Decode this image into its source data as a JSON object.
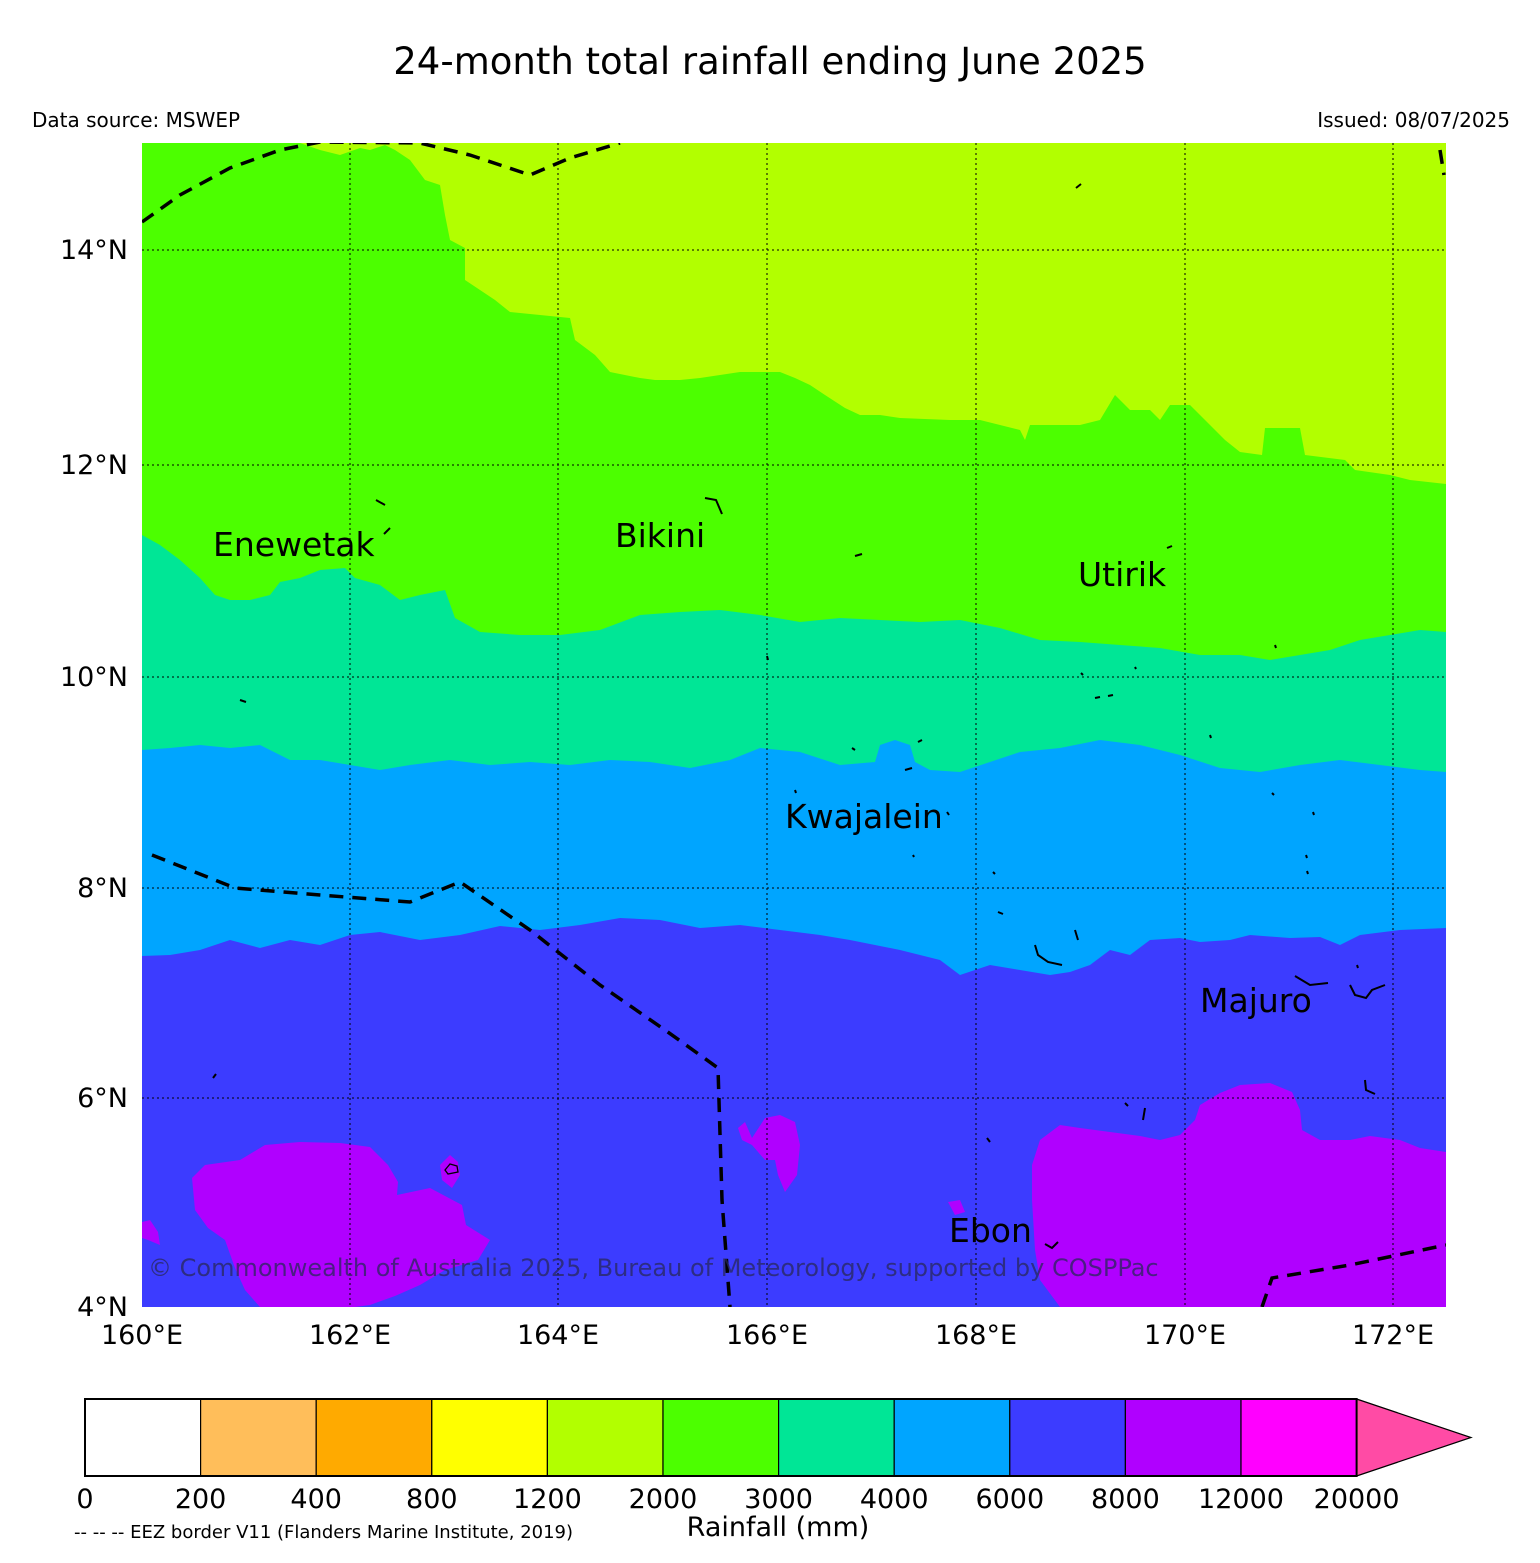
{
  "header": {
    "title": "24-month total rainfall ending June 2025",
    "source": "Data source: MSWEP",
    "issued": "Issued: 08/07/2025"
  },
  "map": {
    "lat_labels": [
      "14°N",
      "12°N",
      "10°N",
      "8°N",
      "6°N",
      "4°N"
    ],
    "lon_labels": [
      "160°E",
      "162°E",
      "164°E",
      "166°E",
      "168°E",
      "170°E",
      "172°E"
    ],
    "places": {
      "enewetak": "Enewetak",
      "bikini": "Bikini",
      "utirik": "Utirik",
      "kwajalein": "Kwajalein",
      "majuro": "Majuro",
      "ebon": "Ebon"
    },
    "copyright": "© Commonwealth of Australia 2025, Bureau of Meteorology, supported by COSPPac",
    "colors": {
      "band_1200_2000": "#b2ff00",
      "band_2000_3000": "#4cff00",
      "band_3000_4000": "#00e696",
      "band_4000_6000": "#00a5ff",
      "band_6000_8000": "#3c3cff",
      "band_8000_12000": "#b000ff"
    }
  },
  "colorbar": {
    "tick_labels": [
      "0",
      "200",
      "400",
      "800",
      "1200",
      "2000",
      "3000",
      "4000",
      "6000",
      "8000",
      "12000",
      "20000"
    ],
    "colors": [
      "#ffffff",
      "#ffbe5a",
      "#ffaa00",
      "#ffff00",
      "#b2ff00",
      "#4cff00",
      "#00e696",
      "#00a5ff",
      "#3c3cff",
      "#b000ff",
      "#ff00ff",
      "#ff4ba5"
    ],
    "title": "Rainfall (mm)",
    "eez_note": "-- -- -- EEZ border V11 (Flanders Marine Institute, 2019)"
  }
}
